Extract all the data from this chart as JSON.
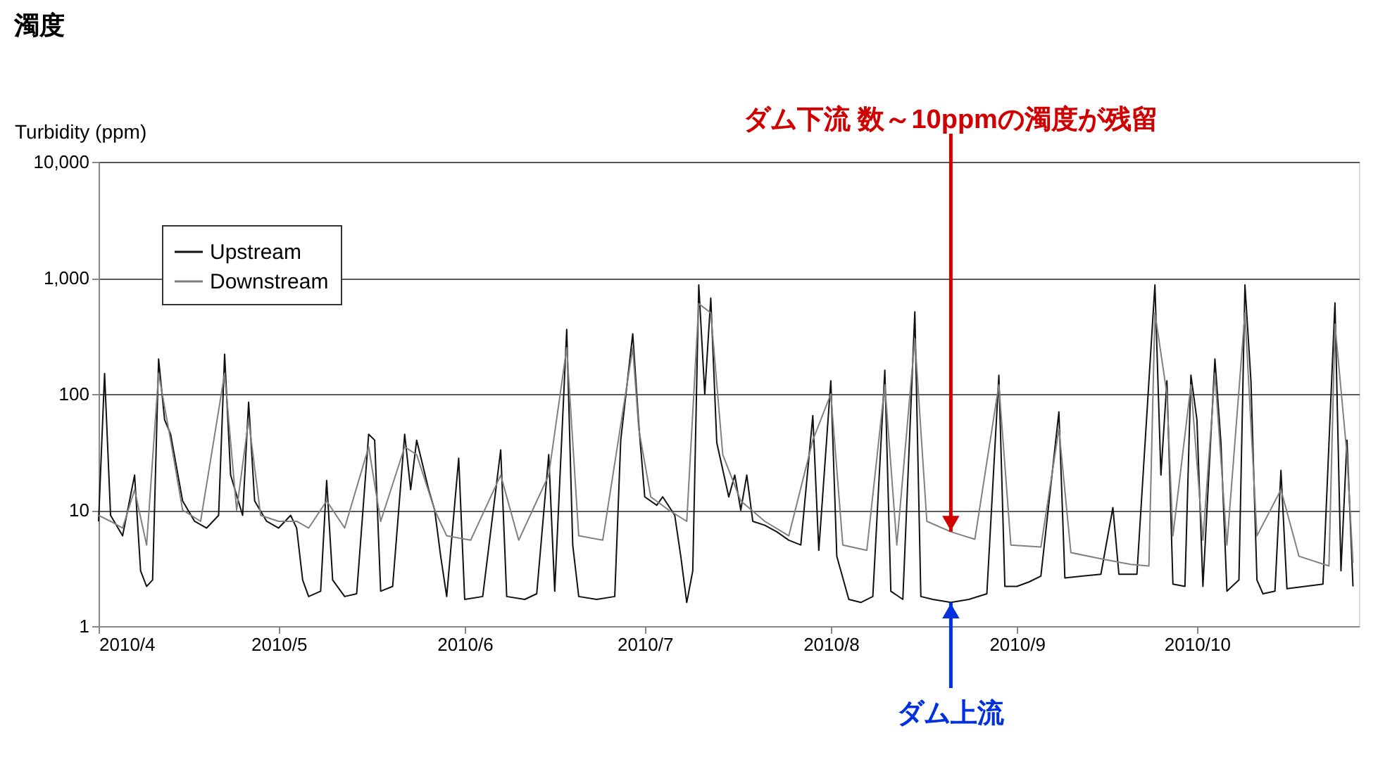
{
  "chart_data": {
    "type": "line",
    "title": "濁度",
    "ylabel": "Turbidity (ppm)",
    "log": "y",
    "grid": "y",
    "legend": "top left",
    "marker": "none",
    "line_style": "solid",
    "xlim": [
      "2010-04-01",
      "2010-10-28"
    ],
    "xticks": [
      {
        "value": "2010-04-01",
        "label": "2010/4"
      },
      {
        "value": "2010-05-01",
        "label": "2010/5"
      },
      {
        "value": "2010-06-01",
        "label": "2010/6"
      },
      {
        "value": "2010-07-01",
        "label": "2010/7"
      },
      {
        "value": "2010-08-01",
        "label": "2010/8"
      },
      {
        "value": "2010-09-01",
        "label": "2010/9"
      },
      {
        "value": "2010-10-01",
        "label": "2010/10"
      }
    ],
    "ylim": [
      1,
      10000
    ],
    "yticks": [
      {
        "value": 1,
        "label": "1"
      },
      {
        "value": 10,
        "label": "10"
      },
      {
        "value": 100,
        "label": "100"
      },
      {
        "value": 1000,
        "label": "1,000"
      },
      {
        "value": 10000,
        "label": "10,000"
      }
    ],
    "series": [
      {
        "name": "Upstream",
        "color": "#111111",
        "x": [
          "2010-04-01",
          "2010-04-02",
          "2010-04-03",
          "2010-04-05",
          "2010-04-07",
          "2010-04-08",
          "2010-04-09",
          "2010-04-10",
          "2010-04-11",
          "2010-04-12",
          "2010-04-13",
          "2010-04-15",
          "2010-04-17",
          "2010-04-19",
          "2010-04-21",
          "2010-04-22",
          "2010-04-23",
          "2010-04-25",
          "2010-04-26",
          "2010-04-27",
          "2010-04-29",
          "2010-05-01",
          "2010-05-03",
          "2010-05-04",
          "2010-05-05",
          "2010-05-06",
          "2010-05-08",
          "2010-05-09",
          "2010-05-10",
          "2010-05-12",
          "2010-05-14",
          "2010-05-16",
          "2010-05-17",
          "2010-05-18",
          "2010-05-20",
          "2010-05-22",
          "2010-05-23",
          "2010-05-24",
          "2010-05-26",
          "2010-05-27",
          "2010-05-28",
          "2010-05-29",
          "2010-05-31",
          "2010-06-01",
          "2010-06-04",
          "2010-06-07",
          "2010-06-08",
          "2010-06-11",
          "2010-06-13",
          "2010-06-15",
          "2010-06-16",
          "2010-06-18",
          "2010-06-19",
          "2010-06-20",
          "2010-06-23",
          "2010-06-26",
          "2010-06-27",
          "2010-06-29",
          "2010-06-30",
          "2010-07-01",
          "2010-07-03",
          "2010-07-04",
          "2010-07-06",
          "2010-07-07",
          "2010-07-08",
          "2010-07-09",
          "2010-07-10",
          "2010-07-11",
          "2010-07-12",
          "2010-07-13",
          "2010-07-15",
          "2010-07-16",
          "2010-07-17",
          "2010-07-18",
          "2010-07-19",
          "2010-07-21",
          "2010-07-23",
          "2010-07-25",
          "2010-07-27",
          "2010-07-29",
          "2010-07-30",
          "2010-08-01",
          "2010-08-02",
          "2010-08-04",
          "2010-08-06",
          "2010-08-08",
          "2010-08-10",
          "2010-08-11",
          "2010-08-13",
          "2010-08-15",
          "2010-08-16",
          "2010-08-18",
          "2010-08-21",
          "2010-08-24",
          "2010-08-27",
          "2010-08-29",
          "2010-08-30",
          "2010-09-01",
          "2010-09-03",
          "2010-09-05",
          "2010-09-08",
          "2010-09-09",
          "2010-09-12",
          "2010-09-15",
          "2010-09-17",
          "2010-09-18",
          "2010-09-21",
          "2010-09-24",
          "2010-09-25",
          "2010-09-26",
          "2010-09-27",
          "2010-09-29",
          "2010-09-30",
          "2010-10-01",
          "2010-10-02",
          "2010-10-04",
          "2010-10-05",
          "2010-10-06",
          "2010-10-08",
          "2010-10-09",
          "2010-10-10",
          "2010-10-11",
          "2010-10-12",
          "2010-10-14",
          "2010-10-15",
          "2010-10-16",
          "2010-10-19",
          "2010-10-22",
          "2010-10-24",
          "2010-10-25",
          "2010-10-26",
          "2010-10-27"
        ],
        "values": [
          8,
          150,
          9,
          6,
          20,
          3,
          2.2,
          2.5,
          200,
          60,
          45,
          12,
          8,
          7,
          9,
          220,
          20,
          9,
          85,
          12,
          8,
          7,
          9,
          7,
          2.5,
          1.8,
          2,
          18,
          2.5,
          1.8,
          1.9,
          45,
          40,
          2,
          2.2,
          45,
          15,
          40,
          15,
          10,
          4,
          1.8,
          28,
          1.7,
          1.8,
          33,
          1.8,
          1.7,
          1.9,
          30,
          2,
          360,
          5,
          1.8,
          1.7,
          1.8,
          40,
          330,
          55,
          13,
          11,
          13,
          9,
          4,
          1.6,
          3,
          870,
          100,
          670,
          38,
          13,
          20,
          10,
          20,
          8,
          7.4,
          6.5,
          5.5,
          5,
          65,
          4.5,
          130,
          4,
          1.7,
          1.6,
          1.8,
          160,
          2,
          1.7,
          510,
          1.8,
          1.7,
          1.6,
          1.7,
          1.9,
          145,
          2.2,
          2.2,
          2.4,
          2.7,
          70,
          2.6,
          2.7,
          2.8,
          10.5,
          2.8,
          2.8,
          870,
          20,
          130,
          2.3,
          2.2,
          145,
          60,
          2.2,
          200,
          38,
          2,
          2.5,
          870,
          130,
          2.5,
          1.9,
          2,
          22,
          2.1,
          2.2,
          2.3,
          610,
          3,
          40,
          2.2
        ]
      },
      {
        "name": "Downstream",
        "color": "#808080",
        "x": [
          "2010-04-01",
          "2010-04-03",
          "2010-04-05",
          "2010-04-07",
          "2010-04-09",
          "2010-04-11",
          "2010-04-13",
          "2010-04-15",
          "2010-04-18",
          "2010-04-22",
          "2010-04-24",
          "2010-04-26",
          "2010-04-28",
          "2010-05-01",
          "2010-05-04",
          "2010-05-06",
          "2010-05-09",
          "2010-05-12",
          "2010-05-16",
          "2010-05-18",
          "2010-05-22",
          "2010-05-24",
          "2010-05-27",
          "2010-05-29",
          "2010-06-02",
          "2010-06-07",
          "2010-06-10",
          "2010-06-15",
          "2010-06-18",
          "2010-06-20",
          "2010-06-24",
          "2010-06-29",
          "2010-06-30",
          "2010-07-02",
          "2010-07-05",
          "2010-07-08",
          "2010-07-10",
          "2010-07-12",
          "2010-07-14",
          "2010-07-17",
          "2010-07-21",
          "2010-07-25",
          "2010-07-29",
          "2010-08-01",
          "2010-08-03",
          "2010-08-07",
          "2010-08-10",
          "2010-08-12",
          "2010-08-15",
          "2010-08-17",
          "2010-08-21",
          "2010-08-25",
          "2010-08-29",
          "2010-08-31",
          "2010-09-05",
          "2010-09-08",
          "2010-09-10",
          "2010-09-15",
          "2010-09-20",
          "2010-09-23",
          "2010-09-24",
          "2010-09-26",
          "2010-09-27",
          "2010-09-30",
          "2010-10-02",
          "2010-10-04",
          "2010-10-06",
          "2010-10-09",
          "2010-10-11",
          "2010-10-15",
          "2010-10-18",
          "2010-10-23",
          "2010-10-24",
          "2010-10-26",
          "2010-10-27"
        ],
        "values": [
          9,
          8,
          7,
          15,
          5,
          150,
          40,
          10,
          8,
          150,
          10,
          60,
          9,
          8,
          8,
          7,
          12,
          7,
          35,
          8,
          35,
          30,
          10,
          6,
          5.5,
          20,
          5.5,
          20,
          250,
          6,
          5.5,
          250,
          50,
          13,
          10,
          8,
          600,
          500,
          30,
          12,
          8,
          6,
          40,
          100,
          5,
          4.5,
          120,
          5,
          300,
          8,
          6.5,
          5.6,
          120,
          5,
          4.8,
          50,
          4.3,
          3.8,
          3.4,
          3.3,
          500,
          100,
          6,
          120,
          5.5,
          150,
          5,
          500,
          6,
          15,
          4,
          3.3,
          400,
          30,
          3.5
        ]
      }
    ],
    "annotations": [
      {
        "text": "ダム下流  数～10ppmの濁度が残留",
        "x": "2010-08-21",
        "y": 6.5
      },
      {
        "text": "ダム上流",
        "x": "2010-08-21",
        "y": 1.6
      }
    ]
  }
}
